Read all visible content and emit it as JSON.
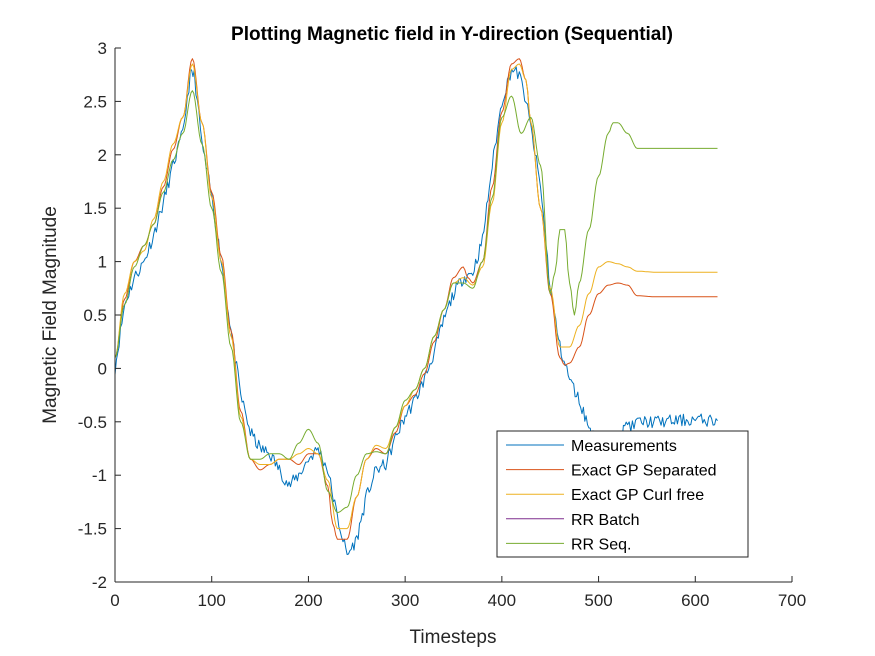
{
  "chart_data": {
    "type": "line",
    "title": "Plotting Magnetic field in Y-direction (Sequential)",
    "xlabel": "Timesteps",
    "ylabel": "Magnetic Field Magnitude",
    "xlim": [
      0,
      700
    ],
    "ylim": [
      -2,
      3
    ],
    "xticks": [
      0,
      100,
      200,
      300,
      400,
      500,
      600,
      700
    ],
    "yticks": [
      -2,
      -1.5,
      -1,
      -0.5,
      0,
      0.5,
      1,
      1.5,
      2,
      2.5,
      3
    ],
    "xtick_labels": [
      "0",
      "100",
      "200",
      "300",
      "400",
      "500",
      "600",
      "700"
    ],
    "ytick_labels": [
      "-2",
      "-1.5",
      "-1",
      "-0.5",
      "0",
      "0.5",
      "1",
      "1.5",
      "2",
      "2.5",
      "3"
    ],
    "grid": false,
    "legend_position": "lower-right-inside",
    "colors": {
      "measurements": "#0072BD",
      "exact_sep": "#D95319",
      "exact_curl": "#EDB120",
      "rr_batch": "#7E2F8E",
      "rr_seq": "#77AC30"
    },
    "series": [
      {
        "name": "Measurements",
        "color": "#0072BD",
        "noise": 0.06,
        "seed": 11,
        "x": [
          0,
          10,
          20,
          30,
          40,
          50,
          60,
          70,
          78,
          82,
          90,
          100,
          110,
          120,
          130,
          140,
          150,
          160,
          170,
          180,
          190,
          200,
          210,
          220,
          230,
          240,
          250,
          260,
          270,
          280,
          290,
          300,
          310,
          320,
          330,
          340,
          350,
          360,
          370,
          380,
          390,
          400,
          410,
          418,
          425,
          430,
          440,
          450,
          460,
          470,
          480,
          490,
          500,
          510,
          520,
          530,
          535,
          540,
          560,
          580,
          600,
          623
        ],
        "y": [
          0.0,
          0.6,
          0.85,
          1.0,
          1.25,
          1.55,
          1.9,
          2.2,
          2.75,
          2.75,
          2.1,
          1.6,
          1.0,
          0.35,
          -0.25,
          -0.6,
          -0.75,
          -0.8,
          -0.95,
          -1.1,
          -1.0,
          -0.85,
          -0.75,
          -0.95,
          -1.4,
          -1.75,
          -1.6,
          -1.2,
          -0.95,
          -0.9,
          -0.65,
          -0.45,
          -0.3,
          -0.1,
          0.15,
          0.45,
          0.7,
          0.85,
          0.9,
          1.2,
          1.9,
          2.5,
          2.8,
          2.75,
          2.5,
          2.25,
          1.7,
          0.75,
          0.2,
          -0.1,
          -0.3,
          -0.55,
          -0.75,
          -0.65,
          -0.7,
          -0.5,
          -0.55,
          -0.5,
          -0.5,
          -0.49,
          -0.48,
          -0.49
        ]
      },
      {
        "name": "Exact GP Separated",
        "color": "#D95319",
        "noise": 0,
        "seed": 0,
        "x": [
          0,
          10,
          20,
          30,
          40,
          50,
          60,
          70,
          80,
          90,
          100,
          110,
          120,
          130,
          140,
          150,
          160,
          170,
          180,
          190,
          200,
          210,
          220,
          225,
          230,
          240,
          250,
          260,
          270,
          280,
          290,
          300,
          310,
          320,
          330,
          340,
          350,
          360,
          365,
          370,
          380,
          390,
          400,
          410,
          418,
          425,
          430,
          440,
          450,
          460,
          465,
          470,
          480,
          490,
          500,
          510,
          520,
          530,
          540,
          560,
          600,
          623
        ],
        "y": [
          0.1,
          0.65,
          1.0,
          1.15,
          1.35,
          1.7,
          2.05,
          2.35,
          2.9,
          2.3,
          1.65,
          1.05,
          0.35,
          -0.4,
          -0.85,
          -0.95,
          -0.9,
          -0.85,
          -0.85,
          -0.9,
          -0.8,
          -0.8,
          -1.1,
          -1.45,
          -1.6,
          -1.6,
          -1.2,
          -0.85,
          -0.75,
          -0.8,
          -0.6,
          -0.35,
          -0.25,
          -0.05,
          0.25,
          0.55,
          0.85,
          0.95,
          0.85,
          0.8,
          1.0,
          1.7,
          2.4,
          2.85,
          2.9,
          2.7,
          2.3,
          1.5,
          0.7,
          0.1,
          0.03,
          0.05,
          0.2,
          0.5,
          0.7,
          0.78,
          0.8,
          0.78,
          0.68,
          0.67,
          0.67,
          0.67
        ]
      },
      {
        "name": "Exact GP Curl free",
        "color": "#EDB120",
        "noise": 0,
        "seed": 0,
        "x": [
          0,
          10,
          20,
          30,
          40,
          50,
          60,
          70,
          80,
          90,
          100,
          110,
          120,
          130,
          140,
          150,
          160,
          170,
          180,
          190,
          200,
          210,
          220,
          230,
          240,
          250,
          260,
          270,
          280,
          290,
          300,
          310,
          320,
          330,
          340,
          350,
          360,
          370,
          380,
          390,
          400,
          410,
          418,
          425,
          430,
          440,
          450,
          460,
          470,
          480,
          490,
          500,
          510,
          520,
          530,
          540,
          560,
          600,
          623
        ],
        "y": [
          0.1,
          0.7,
          1.0,
          1.1,
          1.4,
          1.75,
          2.1,
          2.35,
          2.85,
          2.3,
          1.6,
          1.0,
          0.3,
          -0.45,
          -0.85,
          -0.9,
          -0.9,
          -0.85,
          -0.85,
          -0.8,
          -0.75,
          -0.8,
          -1.05,
          -1.5,
          -1.5,
          -1.2,
          -0.85,
          -0.72,
          -0.75,
          -0.55,
          -0.35,
          -0.2,
          0.0,
          0.3,
          0.55,
          0.8,
          0.85,
          0.78,
          0.95,
          1.55,
          2.3,
          2.8,
          2.85,
          2.7,
          2.3,
          1.5,
          0.75,
          0.2,
          0.2,
          0.4,
          0.7,
          0.95,
          1.0,
          0.98,
          0.95,
          0.91,
          0.9,
          0.9,
          0.9
        ]
      },
      {
        "name": "RR Batch",
        "color": "#7E2F8E",
        "noise": 0,
        "seed": 0,
        "x": [],
        "y": []
      },
      {
        "name": "RR Seq.",
        "color": "#77AC30",
        "noise": 0,
        "seed": 0,
        "x": [
          0,
          10,
          20,
          30,
          40,
          50,
          60,
          70,
          80,
          90,
          100,
          110,
          120,
          130,
          140,
          150,
          160,
          170,
          180,
          190,
          200,
          210,
          220,
          230,
          240,
          250,
          260,
          270,
          280,
          290,
          300,
          310,
          320,
          330,
          340,
          350,
          360,
          370,
          380,
          390,
          400,
          410,
          420,
          430,
          440,
          450,
          455,
          460,
          465,
          470,
          475,
          480,
          490,
          500,
          510,
          515,
          520,
          530,
          540,
          560,
          600,
          623
        ],
        "y": [
          0.1,
          0.6,
          0.95,
          1.15,
          1.35,
          1.65,
          1.95,
          2.2,
          2.6,
          2.1,
          1.5,
          0.9,
          0.2,
          -0.5,
          -0.85,
          -0.85,
          -0.8,
          -0.8,
          -0.85,
          -0.7,
          -0.57,
          -0.7,
          -1.15,
          -1.35,
          -1.3,
          -1.0,
          -0.8,
          -0.78,
          -0.8,
          -0.55,
          -0.3,
          -0.2,
          0.0,
          0.3,
          0.55,
          0.8,
          0.8,
          0.75,
          1.0,
          1.6,
          2.35,
          2.55,
          2.2,
          2.35,
          1.9,
          0.7,
          0.9,
          1.3,
          1.3,
          0.8,
          0.5,
          0.8,
          1.3,
          1.8,
          2.2,
          2.3,
          2.3,
          2.2,
          2.06,
          2.06,
          2.06,
          2.06
        ]
      }
    ]
  }
}
